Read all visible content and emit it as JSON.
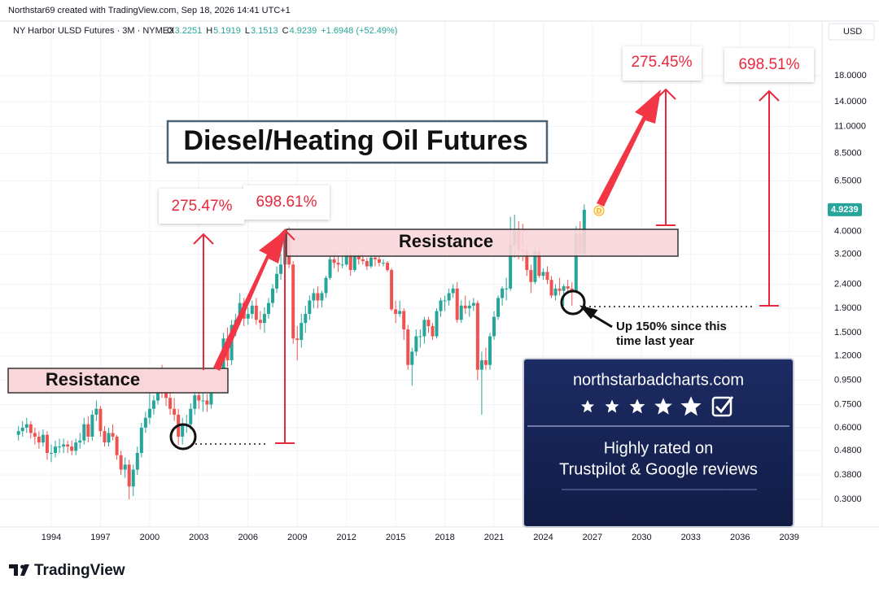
{
  "page_header": "Northstar69 created with TradingView.com, Sep 18, 2026 14:41 UTC+1",
  "chart_data": {
    "type": "candlestick",
    "symbol": "NY Harbor ULSD Futures · 3M · NYMEX",
    "ohlc_labels": [
      "O",
      "H",
      "L",
      "C"
    ],
    "change": "+1.6948 (+52.49%)",
    "currency": "USD",
    "title": "Diesel/Heating Oil Futures",
    "zones": [
      "Resistance",
      "Resistance"
    ],
    "percent_labels": [
      "275.47%",
      "698.61%",
      "275.45%",
      "698.51%"
    ],
    "annotation_lines": [
      "Up 150% since this",
      "time last year"
    ],
    "event_marker": "D",
    "log_scale": true,
    "grid": true,
    "up_color": "#26a69a",
    "down_color": "#ef5350",
    "xlim": [
      1991.37,
      2041
    ],
    "ylim": [
      0.23,
      23.3
    ],
    "xticks": [
      1994,
      1997,
      2000,
      2003,
      2006,
      2009,
      2012,
      2015,
      2018,
      2021,
      2024,
      2027,
      2030,
      2033,
      2036,
      2039
    ],
    "yticks": [
      {
        "value": 18,
        "label": "18.0000"
      },
      {
        "value": 14,
        "label": "14.0000"
      },
      {
        "value": 11,
        "label": "11.0000"
      },
      {
        "value": 8.5,
        "label": "8.5000"
      },
      {
        "value": 6.5,
        "label": "6.5000"
      },
      {
        "value": 4,
        "label": "4.0000"
      },
      {
        "value": 3.2,
        "label": "3.2000"
      },
      {
        "value": 2.4,
        "label": "2.4000"
      },
      {
        "value": 1.9,
        "label": "1.9000"
      },
      {
        "value": 1.5,
        "label": "1.5000"
      },
      {
        "value": 1.2,
        "label": "1.2000"
      },
      {
        "value": 0.95,
        "label": "0.9500"
      },
      {
        "value": 0.75,
        "label": "0.7500"
      },
      {
        "value": 0.6,
        "label": "0.6000"
      },
      {
        "value": 0.48,
        "label": "0.4800"
      },
      {
        "value": 0.38,
        "label": "0.3800"
      },
      {
        "value": 0.3,
        "label": "0.3000"
      }
    ],
    "x": [
      1992,
      1992.25,
      1992.5,
      1992.75,
      1993,
      1993.25,
      1993.5,
      1993.75,
      1994,
      1994.25,
      1994.5,
      1994.75,
      1995,
      1995.25,
      1995.5,
      1995.75,
      1996,
      1996.25,
      1996.5,
      1996.75,
      1997,
      1997.25,
      1997.5,
      1997.75,
      1998,
      1998.25,
      1998.5,
      1998.75,
      1999,
      1999.25,
      1999.5,
      1999.75,
      2000,
      2000.25,
      2000.5,
      2000.75,
      2001,
      2001.25,
      2001.5,
      2001.75,
      2002,
      2002.25,
      2002.5,
      2002.75,
      2003,
      2003.25,
      2003.5,
      2003.75,
      2004,
      2004.25,
      2004.5,
      2004.75,
      2005,
      2005.25,
      2005.5,
      2005.75,
      2006,
      2006.25,
      2006.5,
      2006.75,
      2007,
      2007.25,
      2007.5,
      2007.75,
      2008,
      2008.25,
      2008.5,
      2008.75,
      2009,
      2009.25,
      2009.5,
      2009.75,
      2010,
      2010.25,
      2010.5,
      2010.75,
      2011,
      2011.25,
      2011.5,
      2011.75,
      2012,
      2012.25,
      2012.5,
      2012.75,
      2013,
      2013.25,
      2013.5,
      2013.75,
      2014,
      2014.25,
      2014.5,
      2014.75,
      2015,
      2015.25,
      2015.5,
      2015.75,
      2016,
      2016.25,
      2016.5,
      2016.75,
      2017,
      2017.25,
      2017.5,
      2017.75,
      2018,
      2018.25,
      2018.5,
      2018.75,
      2019,
      2019.25,
      2019.5,
      2019.75,
      2020,
      2020.25,
      2020.5,
      2020.75,
      2021,
      2021.25,
      2021.5,
      2021.75,
      2022,
      2022.25,
      2022.5,
      2022.75,
      2023,
      2023.25,
      2023.5,
      2023.75,
      2024,
      2024.25,
      2024.5,
      2024.75,
      2025,
      2025.25,
      2025.5,
      2025.75,
      2026,
      2026.25,
      2026.5
    ],
    "ohlc": [
      [
        0.56,
        0.61,
        0.53,
        0.58
      ],
      [
        0.58,
        0.64,
        0.55,
        0.6
      ],
      [
        0.6,
        0.66,
        0.57,
        0.62
      ],
      [
        0.62,
        0.64,
        0.54,
        0.57
      ],
      [
        0.57,
        0.6,
        0.51,
        0.55
      ],
      [
        0.55,
        0.58,
        0.49,
        0.52
      ],
      [
        0.52,
        0.59,
        0.5,
        0.56
      ],
      [
        0.56,
        0.58,
        0.44,
        0.47
      ],
      [
        0.47,
        0.51,
        0.43,
        0.47
      ],
      [
        0.47,
        0.53,
        0.45,
        0.5
      ],
      [
        0.5,
        0.54,
        0.47,
        0.5
      ],
      [
        0.5,
        0.54,
        0.47,
        0.51
      ],
      [
        0.51,
        0.53,
        0.47,
        0.5
      ],
      [
        0.5,
        0.53,
        0.46,
        0.48
      ],
      [
        0.48,
        0.54,
        0.46,
        0.52
      ],
      [
        0.52,
        0.57,
        0.49,
        0.53
      ],
      [
        0.53,
        0.66,
        0.51,
        0.62
      ],
      [
        0.62,
        0.67,
        0.52,
        0.55
      ],
      [
        0.55,
        0.71,
        0.53,
        0.68
      ],
      [
        0.68,
        0.78,
        0.64,
        0.72
      ],
      [
        0.72,
        0.74,
        0.55,
        0.58
      ],
      [
        0.58,
        0.61,
        0.5,
        0.52
      ],
      [
        0.52,
        0.6,
        0.5,
        0.57
      ],
      [
        0.57,
        0.62,
        0.53,
        0.55
      ],
      [
        0.55,
        0.56,
        0.44,
        0.46
      ],
      [
        0.46,
        0.48,
        0.38,
        0.4
      ],
      [
        0.4,
        0.45,
        0.37,
        0.42
      ],
      [
        0.42,
        0.44,
        0.3,
        0.34
      ],
      [
        0.34,
        0.42,
        0.31,
        0.4
      ],
      [
        0.4,
        0.5,
        0.38,
        0.47
      ],
      [
        0.47,
        0.63,
        0.45,
        0.6
      ],
      [
        0.6,
        0.7,
        0.57,
        0.66
      ],
      [
        0.66,
        0.9,
        0.62,
        0.72
      ],
      [
        0.72,
        0.82,
        0.68,
        0.78
      ],
      [
        0.78,
        1.02,
        0.75,
        0.95
      ],
      [
        0.95,
        1.1,
        0.8,
        0.85
      ],
      [
        0.85,
        0.9,
        0.74,
        0.8
      ],
      [
        0.8,
        0.85,
        0.68,
        0.72
      ],
      [
        0.72,
        0.8,
        0.64,
        0.68
      ],
      [
        0.68,
        0.72,
        0.51,
        0.55
      ],
      [
        0.55,
        0.66,
        0.51,
        0.62
      ],
      [
        0.62,
        0.68,
        0.57,
        0.62
      ],
      [
        0.62,
        0.76,
        0.59,
        0.72
      ],
      [
        0.72,
        0.88,
        0.68,
        0.82
      ],
      [
        0.82,
        1.05,
        0.72,
        0.78
      ],
      [
        0.78,
        0.84,
        0.7,
        0.78
      ],
      [
        0.78,
        0.83,
        0.7,
        0.75
      ],
      [
        0.75,
        0.98,
        0.72,
        0.93
      ],
      [
        0.93,
        1.04,
        0.88,
        0.98
      ],
      [
        0.98,
        1.12,
        0.92,
        1.05
      ],
      [
        1.05,
        1.5,
        1,
        1.42
      ],
      [
        1.42,
        1.58,
        1.08,
        1.15
      ],
      [
        1.15,
        1.7,
        1.1,
        1.62
      ],
      [
        1.62,
        1.8,
        1.45,
        1.7
      ],
      [
        1.7,
        2.2,
        1.62,
        2
      ],
      [
        2,
        2.1,
        1.6,
        1.72
      ],
      [
        1.72,
        1.92,
        1.62,
        1.8
      ],
      [
        1.8,
        2.05,
        1.72,
        1.95
      ],
      [
        1.95,
        2.1,
        1.62,
        1.7
      ],
      [
        1.7,
        1.85,
        1.55,
        1.65
      ],
      [
        1.65,
        1.92,
        1.5,
        1.8
      ],
      [
        1.8,
        2.1,
        1.72,
        2
      ],
      [
        2,
        2.4,
        1.92,
        2.3
      ],
      [
        2.3,
        2.85,
        2.2,
        2.65
      ],
      [
        2.65,
        3.2,
        2.5,
        2.9
      ],
      [
        2.9,
        4.1,
        2.85,
        3.9
      ],
      [
        3.9,
        4.16,
        2.8,
        2.9
      ],
      [
        2.9,
        3,
        1.35,
        1.42
      ],
      [
        1.42,
        1.6,
        1.15,
        1.4
      ],
      [
        1.4,
        1.8,
        1.3,
        1.65
      ],
      [
        1.65,
        1.95,
        1.5,
        1.8
      ],
      [
        1.8,
        2.15,
        1.7,
        2.05
      ],
      [
        2.05,
        2.3,
        1.9,
        2.2
      ],
      [
        2.2,
        2.35,
        1.9,
        2.05
      ],
      [
        2.05,
        2.25,
        1.92,
        2.2
      ],
      [
        2.2,
        2.6,
        2.1,
        2.55
      ],
      [
        2.55,
        3.15,
        2.5,
        3.05
      ],
      [
        3.05,
        3.3,
        2.8,
        2.95
      ],
      [
        2.95,
        3.15,
        2.7,
        2.9
      ],
      [
        2.9,
        3.15,
        2.8,
        2.9
      ],
      [
        2.9,
        3.35,
        2.85,
        3.2
      ],
      [
        3.2,
        3.3,
        2.6,
        2.75
      ],
      [
        2.75,
        3.25,
        2.7,
        3.15
      ],
      [
        3.15,
        3.25,
        2.9,
        3.05
      ],
      [
        3.05,
        3.3,
        2.9,
        3
      ],
      [
        3,
        3.1,
        2.75,
        2.85
      ],
      [
        2.85,
        3.2,
        2.8,
        3.1
      ],
      [
        3.1,
        3.15,
        2.85,
        3.05
      ],
      [
        3.05,
        3.2,
        2.85,
        2.95
      ],
      [
        2.95,
        3.05,
        2.85,
        2.95
      ],
      [
        2.95,
        3,
        2.7,
        2.75
      ],
      [
        2.75,
        2.8,
        1.85,
        1.88
      ],
      [
        1.88,
        2.05,
        1.65,
        1.8
      ],
      [
        1.8,
        2.05,
        1.75,
        1.85
      ],
      [
        1.85,
        1.9,
        1.4,
        1.55
      ],
      [
        1.55,
        1.62,
        1.05,
        1.1
      ],
      [
        1.1,
        1.3,
        0.9,
        1.25
      ],
      [
        1.25,
        1.55,
        1.2,
        1.45
      ],
      [
        1.45,
        1.55,
        1.3,
        1.45
      ],
      [
        1.45,
        1.75,
        1.35,
        1.7
      ],
      [
        1.7,
        1.75,
        1.5,
        1.6
      ],
      [
        1.6,
        1.65,
        1.4,
        1.45
      ],
      [
        1.45,
        1.9,
        1.42,
        1.85
      ],
      [
        1.85,
        2.1,
        1.75,
        2.05
      ],
      [
        2.05,
        2.15,
        1.85,
        2.05
      ],
      [
        2.05,
        2.3,
        1.95,
        2.2
      ],
      [
        2.2,
        2.4,
        2.1,
        2.3
      ],
      [
        2.3,
        2.45,
        1.65,
        1.7
      ],
      [
        1.7,
        2.05,
        1.65,
        1.95
      ],
      [
        1.95,
        2.15,
        1.8,
        1.9
      ],
      [
        1.9,
        2.05,
        1.75,
        1.95
      ],
      [
        1.95,
        2.1,
        1.85,
        2
      ],
      [
        2,
        2.05,
        0.95,
        1.05
      ],
      [
        1.05,
        1.25,
        0.68,
        1.15
      ],
      [
        1.15,
        1.3,
        1.05,
        1.1
      ],
      [
        1.1,
        1.5,
        1.05,
        1.45
      ],
      [
        1.45,
        1.85,
        1.4,
        1.75
      ],
      [
        1.75,
        2.15,
        1.7,
        2.1
      ],
      [
        2.1,
        2.35,
        1.95,
        2.3
      ],
      [
        2.3,
        2.55,
        2.05,
        2.3
      ],
      [
        2.3,
        4.6,
        2.25,
        3.5
      ],
      [
        3.5,
        4.7,
        3.1,
        4
      ],
      [
        4,
        4.4,
        3.05,
        3.35
      ],
      [
        3.35,
        4.3,
        3,
        3.3
      ],
      [
        3.3,
        3.5,
        2.6,
        2.75
      ],
      [
        2.75,
        2.9,
        2.2,
        2.45
      ],
      [
        2.45,
        3.45,
        2.4,
        3.3
      ],
      [
        3.3,
        3.4,
        2.55,
        2.6
      ],
      [
        2.6,
        2.8,
        2.5,
        2.7
      ],
      [
        2.7,
        2.85,
        2.4,
        2.5
      ],
      [
        2.5,
        2.6,
        2.1,
        2.15
      ],
      [
        2.15,
        2.4,
        2.05,
        2.3
      ],
      [
        2.3,
        2.55,
        2.15,
        2.25
      ],
      [
        2.25,
        2.4,
        1.95,
        2.35
      ],
      [
        2.35,
        2.5,
        2.2,
        2.3
      ],
      [
        2.3,
        2.45,
        1.95,
        2.25
      ],
      [
        2.25,
        4.2,
        2.2,
        3.9
      ],
      [
        3.9,
        4.4,
        3.2,
        3.23
      ],
      [
        3.2251,
        5.1919,
        3.1513,
        4.9239
      ]
    ]
  },
  "ad": {
    "site": "northstarbadcharts.com",
    "lines": [
      "Highly rated on",
      "Trustpilot & Google reviews"
    ]
  },
  "footer": {
    "brand": "TradingView"
  }
}
